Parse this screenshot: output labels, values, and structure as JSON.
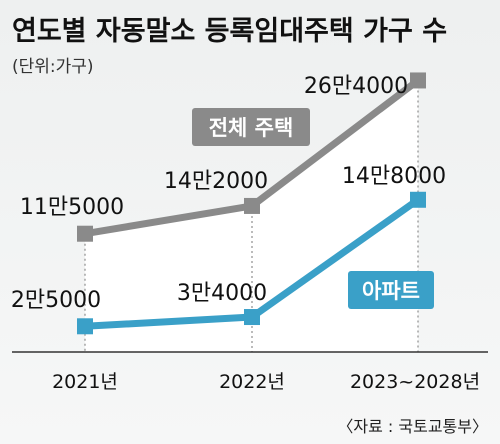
{
  "chart_data": {
    "type": "line",
    "title": "연도별 자동말소 등록임대주택 가구 수",
    "subtitle": "(단위:가구)",
    "categories": [
      "2021년",
      "2022년",
      "2023~2028년"
    ],
    "series": [
      {
        "name": "전체 주택",
        "values": [
          115000,
          142000,
          264000
        ],
        "labels": [
          "11만5000",
          "14만2000",
          "26만4000"
        ],
        "color": "#8a8a8a"
      },
      {
        "name": "아파트",
        "values": [
          25000,
          34000,
          148000
        ],
        "labels": [
          "2만5000",
          "3만4000",
          "14만8000"
        ],
        "color": "#3aa0c8"
      }
    ],
    "ylim": [
      0,
      280000
    ],
    "grid": false,
    "legend": "inline",
    "source": "〈자료 : 국토교통부〉"
  }
}
